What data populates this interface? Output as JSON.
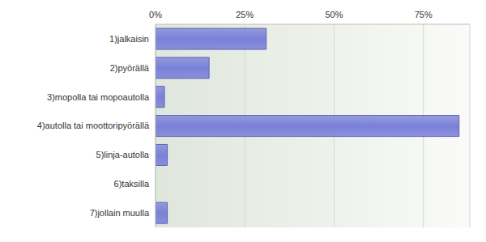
{
  "chart_data": {
    "type": "bar",
    "orientation": "horizontal",
    "categories": [
      "1)jalkaisin",
      "2)pyörällä",
      "3)mopolla tai mopoautolla",
      "4)autolla tai moottoripyörällä",
      "5)linja-autolla",
      "6)taksilla",
      "7)jollain muulla"
    ],
    "values": [
      31,
      15,
      2.5,
      85,
      3.3,
      0,
      3.3
    ],
    "color": "#7a80d8",
    "xlim": [
      0,
      88
    ],
    "xticks": [
      {
        "value": 0,
        "label": "0%"
      },
      {
        "value": 25,
        "label": "25%"
      },
      {
        "value": 50,
        "label": "50%"
      },
      {
        "value": 75,
        "label": "75%"
      }
    ],
    "grid": true
  }
}
